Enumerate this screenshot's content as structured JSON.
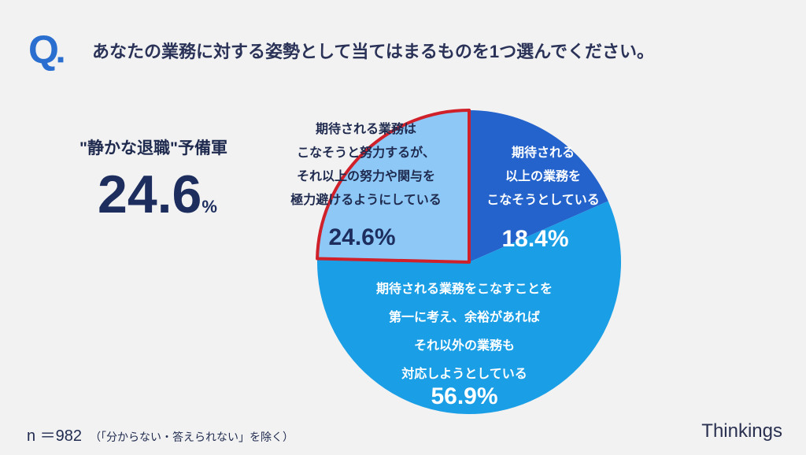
{
  "header": {
    "q_mark": "Q",
    "question": "あなたの業務に対する姿勢として当てはまるものを1つ選んでください。"
  },
  "highlight": {
    "label": "\"静かな退職\"予備軍",
    "value": "24.6",
    "unit": "%"
  },
  "chart_data": {
    "type": "pie",
    "slices": [
      {
        "label": "期待される業務はこなそうと努力するが、それ以上の努力や関与を極力避けるようにしている",
        "lines": [
          "期待される業務は",
          "こなそうと努力するが、",
          "それ以上の努力や関与を",
          "極力避けるようにしている"
        ],
        "value": 24.6,
        "value_label": "24.6%",
        "color": "#8ec8f6",
        "highlighted": true
      },
      {
        "label": "期待される以上の業務をこなそうとしている",
        "lines": [
          "期待される",
          "以上の業務を",
          "こなそうとしている"
        ],
        "value": 18.4,
        "value_label": "18.4%",
        "color": "#2463cc"
      },
      {
        "label": "期待される業務をこなすことを第一に考え、余裕があればそれ以外の業務も対応しようとしている",
        "lines": [
          "期待される業務をこなすことを",
          "第一に考え、余裕があれば",
          "それ以外の業務も",
          "対応しようとしている"
        ],
        "value": 56.9,
        "value_label": "56.9%",
        "color": "#1a9ee6"
      }
    ],
    "highlight_color": "#d0202a"
  },
  "footer": {
    "n": "n ＝982",
    "note": "（「分からない・答えられない」を除く）",
    "brand": "Thinkings"
  }
}
